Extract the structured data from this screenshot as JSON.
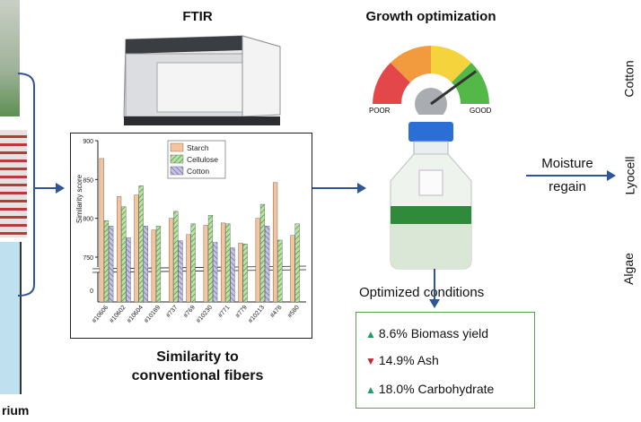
{
  "left_partial_label": "rium",
  "ftir": {
    "title": "FTIR"
  },
  "growth": {
    "title": "Growth optimization",
    "gauge_poor": "POOR",
    "gauge_good": "GOOD",
    "gauge_level": 0.8
  },
  "similarity_caption_line1": "Similarity to",
  "similarity_caption_line2": "conventional fibers",
  "moisture_label_line1": "Moisture",
  "moisture_label_line2": "regain",
  "fibers": [
    "Cotton",
    "Lyocell",
    "Algae"
  ],
  "optimized": {
    "title": "Optimized conditions",
    "items": [
      {
        "text": "8.6% Biomass yield",
        "direction": "up"
      },
      {
        "text": "14.9% Ash",
        "direction": "down"
      },
      {
        "text": "18.0% Carbohydrate",
        "direction": "up"
      }
    ]
  },
  "colors": {
    "arrow": "#2e5597",
    "starch": "#f6c49a",
    "cellulose": "#b9e3a6",
    "cotton": "#c7c3e6",
    "box_border": "#5aa34b",
    "up": "#1f9e6a",
    "down": "#c0282d"
  },
  "chart_data": {
    "type": "bar",
    "ylabel": "Similarity score",
    "ylim": [
      750,
      900
    ],
    "y_ticks": [
      750,
      800,
      850,
      900
    ],
    "axis_break": true,
    "bottom_tick": "0",
    "categories": [
      "#10606",
      "#10602",
      "#10604",
      "#10189",
      "#737",
      "#769",
      "#10230",
      "#771",
      "#779",
      "#10213",
      "#478",
      "#580"
    ],
    "series": [
      {
        "name": "Starch",
        "values": [
          877,
          828,
          830,
          785,
          800,
          779,
          791,
          794,
          768,
          800,
          846,
          778
        ]
      },
      {
        "name": "Cellulose",
        "values": [
          797,
          815,
          842,
          790,
          809,
          793,
          804,
          793,
          767,
          818,
          772,
          793
        ]
      },
      {
        "name": "Cotton",
        "values": [
          790,
          775,
          790,
          0,
          771,
          0,
          769,
          762,
          0,
          790,
          0,
          0
        ]
      }
    ]
  }
}
